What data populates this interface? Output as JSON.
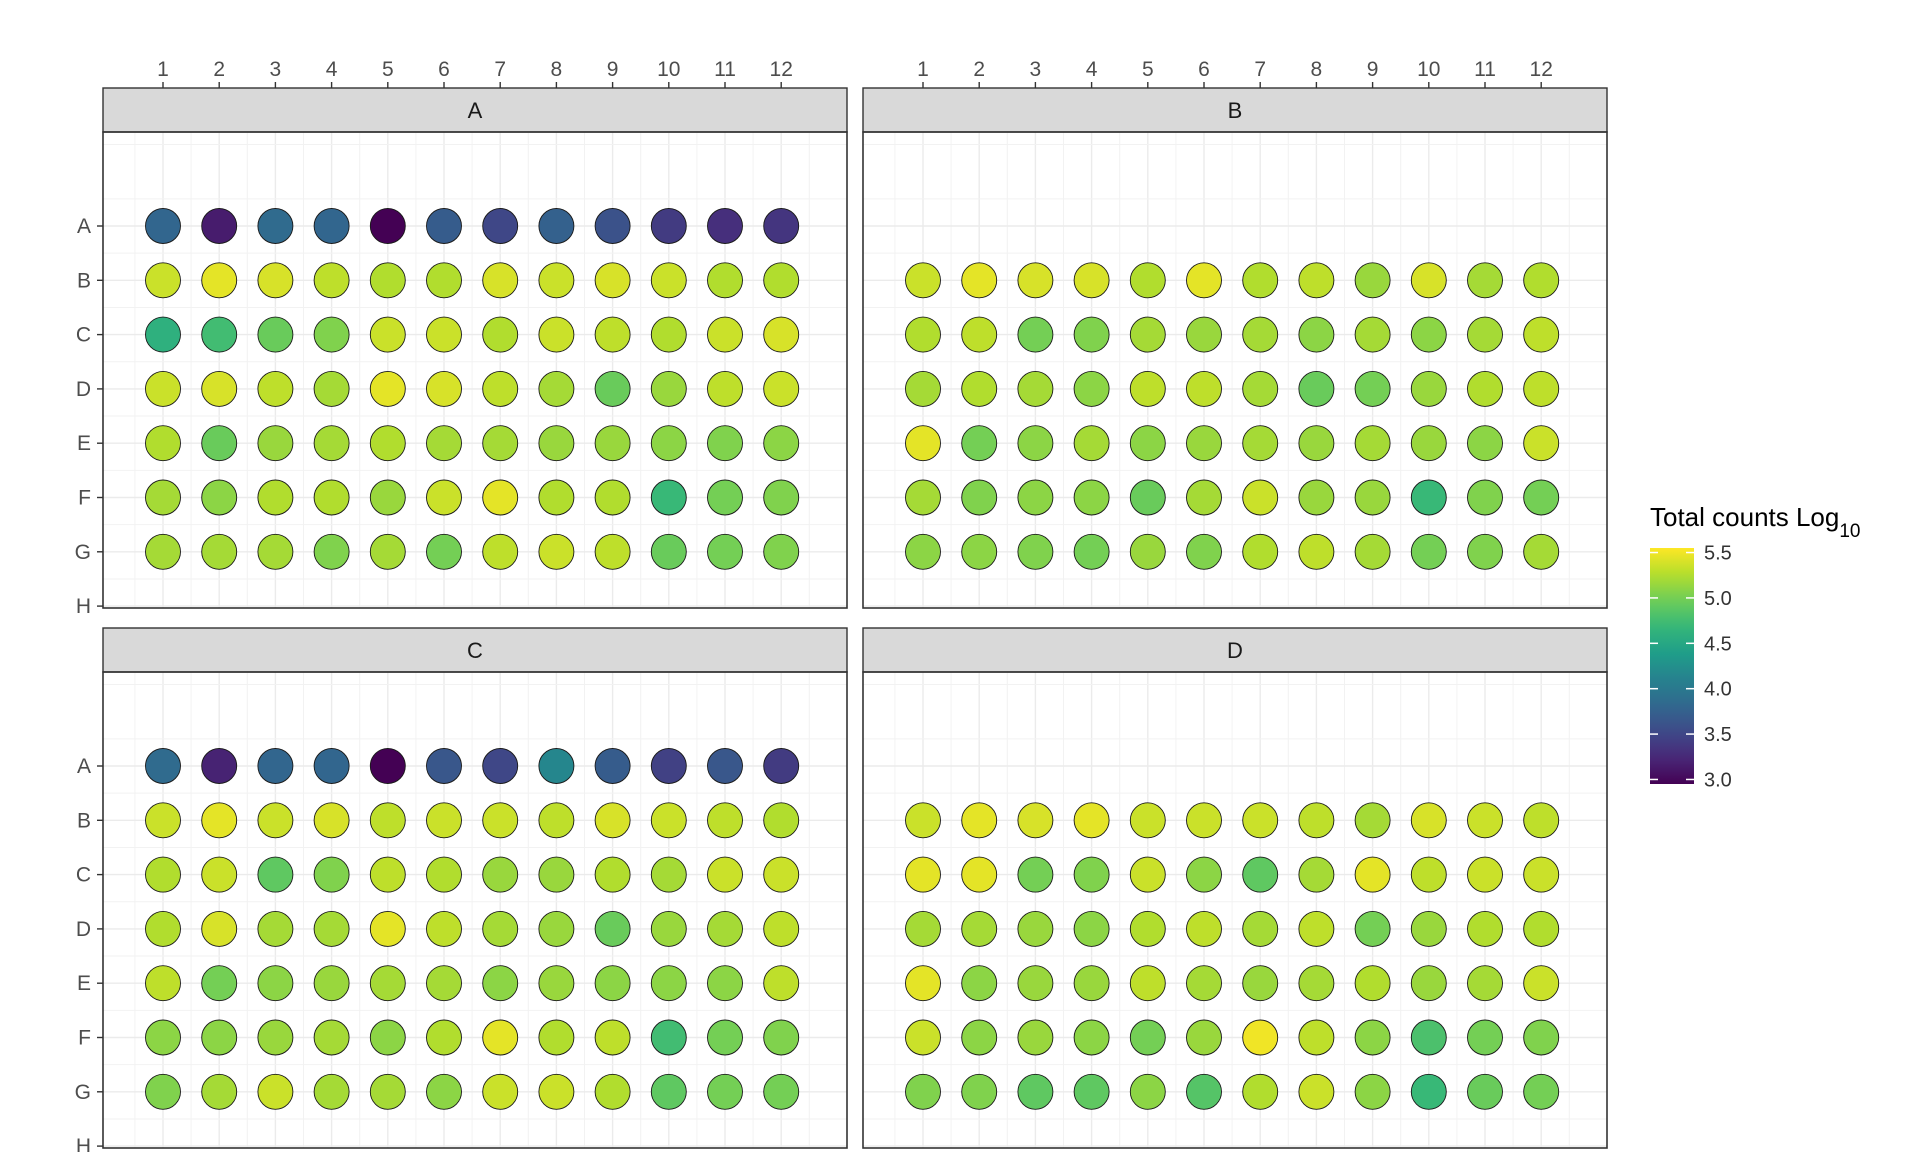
{
  "chart_data": {
    "type": "heatmap",
    "plot_kind": "96-well plate map",
    "columns": [
      "1",
      "2",
      "3",
      "4",
      "5",
      "6",
      "7",
      "8",
      "9",
      "10",
      "11",
      "12"
    ],
    "rows": [
      "A",
      "B",
      "C",
      "D",
      "E",
      "F",
      "G",
      "H"
    ],
    "legend": {
      "title": "Total counts Log",
      "title_subscript": "10",
      "ticks": [
        "5.5",
        "5.0",
        "4.5",
        "4.0",
        "3.5",
        "3.0"
      ],
      "tick_values": [
        5.5,
        5.0,
        4.5,
        4.0,
        3.5,
        3.0
      ],
      "range": [
        2.95,
        5.55
      ],
      "colormap": "viridis",
      "placement": "right"
    },
    "panels": [
      {
        "label": "A",
        "values": [
          [
            3.8,
            3.15,
            3.85,
            3.8,
            2.95,
            3.7,
            3.5,
            3.75,
            3.6,
            3.4,
            3.3,
            3.35
          ],
          [
            5.35,
            5.45,
            5.4,
            5.3,
            5.25,
            5.25,
            5.4,
            5.35,
            5.4,
            5.35,
            5.25,
            5.25
          ],
          [
            4.6,
            4.75,
            4.95,
            5.05,
            5.35,
            5.35,
            5.25,
            5.35,
            5.3,
            5.25,
            5.35,
            5.4
          ],
          [
            5.35,
            5.4,
            5.3,
            5.2,
            5.45,
            5.4,
            5.3,
            5.2,
            4.95,
            5.15,
            5.3,
            5.35
          ],
          [
            5.25,
            4.95,
            5.15,
            5.2,
            5.25,
            5.2,
            5.2,
            5.15,
            5.15,
            5.1,
            5.05,
            5.1
          ],
          [
            5.2,
            5.1,
            5.25,
            5.25,
            5.15,
            5.35,
            5.45,
            5.25,
            5.25,
            4.7,
            5.0,
            5.05
          ],
          [
            5.2,
            5.2,
            5.2,
            5.05,
            5.2,
            5.0,
            5.3,
            5.35,
            5.3,
            4.95,
            5.0,
            5.05
          ],
          [
            null,
            null,
            null,
            null,
            null,
            null,
            null,
            null,
            null,
            null,
            null,
            null
          ]
        ]
      },
      {
        "label": "B",
        "values": [
          [
            null,
            null,
            null,
            null,
            null,
            null,
            null,
            null,
            null,
            null,
            null,
            null
          ],
          [
            5.35,
            5.45,
            5.4,
            5.4,
            5.25,
            5.45,
            5.25,
            5.3,
            5.15,
            5.4,
            5.2,
            5.25
          ],
          [
            5.25,
            5.3,
            5.0,
            5.05,
            5.2,
            5.15,
            5.2,
            5.1,
            5.2,
            5.1,
            5.2,
            5.3
          ],
          [
            5.2,
            5.25,
            5.2,
            5.1,
            5.3,
            5.3,
            5.2,
            4.95,
            5.0,
            5.15,
            5.25,
            5.3
          ],
          [
            5.45,
            5.0,
            5.1,
            5.2,
            5.1,
            5.15,
            5.2,
            5.15,
            5.2,
            5.15,
            5.1,
            5.35
          ],
          [
            5.2,
            5.05,
            5.1,
            5.1,
            4.95,
            5.2,
            5.35,
            5.15,
            5.15,
            4.7,
            5.05,
            5.0
          ],
          [
            5.1,
            5.1,
            5.05,
            5.0,
            5.15,
            5.05,
            5.25,
            5.3,
            5.2,
            5.0,
            5.05,
            5.2
          ],
          [
            null,
            null,
            null,
            null,
            null,
            null,
            null,
            null,
            null,
            null,
            null,
            null
          ]
        ]
      },
      {
        "label": "C",
        "values": [
          [
            3.85,
            3.2,
            3.8,
            3.8,
            2.95,
            3.65,
            3.5,
            4.15,
            3.7,
            3.45,
            3.65,
            3.4
          ],
          [
            5.35,
            5.45,
            5.35,
            5.4,
            5.3,
            5.35,
            5.35,
            5.3,
            5.4,
            5.35,
            5.3,
            5.25
          ],
          [
            5.25,
            5.35,
            4.9,
            5.05,
            5.3,
            5.25,
            5.15,
            5.15,
            5.25,
            5.2,
            5.35,
            5.35
          ],
          [
            5.25,
            5.4,
            5.2,
            5.2,
            5.45,
            5.3,
            5.2,
            5.15,
            4.95,
            5.15,
            5.2,
            5.3
          ],
          [
            5.3,
            5.0,
            5.1,
            5.15,
            5.2,
            5.2,
            5.1,
            5.15,
            5.1,
            5.1,
            5.1,
            5.3
          ],
          [
            5.1,
            5.1,
            5.15,
            5.2,
            5.1,
            5.25,
            5.45,
            5.25,
            5.3,
            4.75,
            5.0,
            5.05
          ],
          [
            5.05,
            5.2,
            5.35,
            5.2,
            5.2,
            5.1,
            5.35,
            5.35,
            5.25,
            4.9,
            5.0,
            5.0
          ],
          [
            null,
            null,
            null,
            null,
            null,
            null,
            null,
            null,
            null,
            null,
            null,
            null
          ]
        ]
      },
      {
        "label": "D",
        "values": [
          [
            null,
            null,
            null,
            null,
            null,
            null,
            null,
            null,
            null,
            null,
            null,
            null
          ],
          [
            5.35,
            5.45,
            5.4,
            5.45,
            5.35,
            5.35,
            5.35,
            5.3,
            5.2,
            5.4,
            5.35,
            5.3
          ],
          [
            5.45,
            5.45,
            5.0,
            5.05,
            5.35,
            5.1,
            4.9,
            5.2,
            5.45,
            5.3,
            5.35,
            5.35
          ],
          [
            5.2,
            5.2,
            5.15,
            5.1,
            5.25,
            5.3,
            5.2,
            5.3,
            5.0,
            5.15,
            5.25,
            5.25
          ],
          [
            5.45,
            5.1,
            5.15,
            5.15,
            5.3,
            5.2,
            5.15,
            5.2,
            5.25,
            5.15,
            5.2,
            5.35
          ],
          [
            5.35,
            5.1,
            5.15,
            5.1,
            5.0,
            5.15,
            5.5,
            5.3,
            5.1,
            4.8,
            5.0,
            5.05
          ],
          [
            5.05,
            5.05,
            4.9,
            4.9,
            5.1,
            4.85,
            5.25,
            5.35,
            5.1,
            4.7,
            4.95,
            5.0
          ],
          [
            null,
            null,
            null,
            null,
            null,
            null,
            null,
            null,
            null,
            null,
            null,
            null
          ]
        ]
      }
    ],
    "grid": true,
    "xlabel": "",
    "ylabel": ""
  }
}
